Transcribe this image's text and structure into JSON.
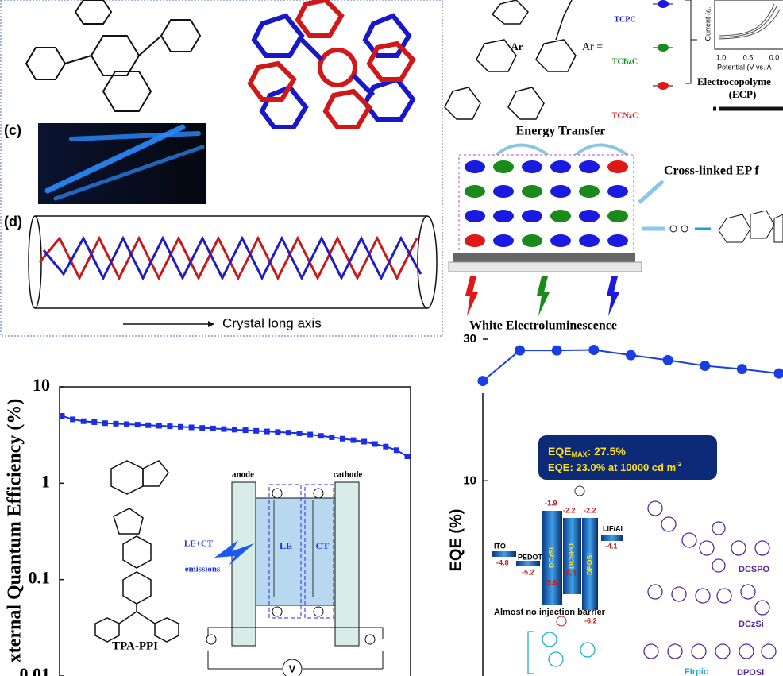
{
  "figures": {
    "top_left": {
      "labels": [
        "(c)",
        "(d)"
      ],
      "axis_caption": "Crystal long axis"
    },
    "top_right": {
      "ar_label": "Ar",
      "ar_eq": "Ar =",
      "monomers": [
        "TCPC",
        "TCBzC",
        "TCNzC"
      ],
      "cv_ylabel": "Current (a.",
      "cv_xticks": [
        "1.0",
        "0.5",
        "0.0"
      ],
      "cv_xlabel": "Potential (V vs. A",
      "ecp_title": "Electrocopolyme",
      "ecp_abbr": "(ECP)",
      "energy_transfer": "Energy Transfer",
      "film": "Cross-linked EP f",
      "emission": "White Electroluminescence"
    }
  },
  "chart_data": [
    {
      "type": "line",
      "ylabel": "xternal Quantum Efficiency (%)",
      "log_scale": true,
      "ylim": [
        0.01,
        10
      ],
      "yticks": [
        0.01,
        0.1,
        1,
        10
      ],
      "color": "#1a2ee8",
      "marker": "square",
      "values": [
        5.0,
        4.6,
        4.4,
        4.3,
        4.2,
        4.15,
        4.1,
        4.05,
        4.0,
        3.95,
        3.9,
        3.85,
        3.8,
        3.75,
        3.7,
        3.65,
        3.6,
        3.55,
        3.5,
        3.45,
        3.4,
        3.35,
        3.3,
        3.2,
        3.1,
        3.0,
        2.9,
        2.8,
        2.7,
        2.55,
        2.4,
        2.2,
        1.9
      ],
      "inset": {
        "molecule": "TPA-PPI",
        "anode": "anode",
        "cathode": "cathode",
        "source": "LE+CT",
        "source2": "emissions",
        "le": "LE",
        "ct": "CT",
        "voltage": "V"
      }
    },
    {
      "type": "line",
      "ylabel": "EQE (%)",
      "log_scale": true,
      "ylim": [
        2.2,
        37
      ],
      "yticks": [
        10,
        30
      ],
      "color": "#1a3ee6",
      "marker": "circle",
      "values": [
        21.7,
        27.5,
        27.5,
        27.6,
        26.5,
        25.5,
        24.4,
        23.8,
        23.0
      ],
      "eqe_box": {
        "line1": [
          "EQE",
          "MAX",
          ": 27.5%"
        ],
        "line2": [
          "EQE: 23.0% at 10000 cd m",
          "-2"
        ]
      },
      "device": {
        "layers": [
          "ITO",
          "PEDOT",
          "DCzSi",
          "DCSPO",
          "DPOSi",
          "LiF/Al"
        ],
        "levels": [
          -4.8,
          -5.2,
          -1.9,
          -5.6,
          -2.2,
          -5.4,
          -2.2,
          -6.2,
          -4.1
        ],
        "caption": "Almost no injection barrier"
      },
      "hosts": [
        "DCSPO",
        "DCzSi",
        "DPOSi"
      ],
      "dopant": "FIrpic"
    }
  ]
}
